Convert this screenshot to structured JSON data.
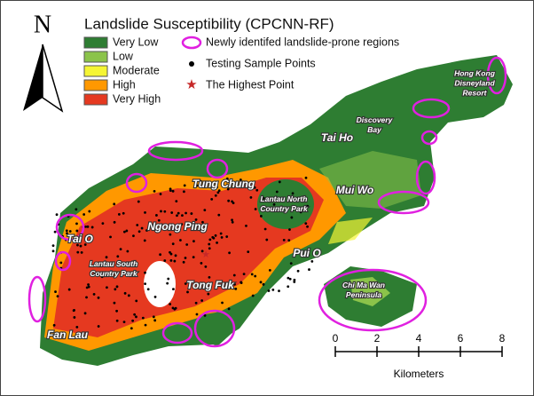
{
  "north": "N",
  "legend": {
    "title": "Landslide Susceptibility (CPCNN-RF)",
    "classes": [
      {
        "label": "Very Low",
        "color": "#2e7d32"
      },
      {
        "label": "Low",
        "color": "#8bc34a"
      },
      {
        "label": "Moderate",
        "color": "#f5f534"
      },
      {
        "label": "High",
        "color": "#ff9800"
      },
      {
        "label": "Very High",
        "color": "#e53920"
      }
    ],
    "symbols": [
      "Newly identifed landslide-prone regions",
      "Testing Sample Points",
      "The Highest Point"
    ]
  },
  "places": [
    {
      "lines": [
        "Hong Kong",
        "Disneyland",
        "Resort"
      ]
    },
    {
      "lines": [
        "Discovery",
        "Bay"
      ]
    },
    {
      "lines": [
        "Tai Ho"
      ]
    },
    {
      "lines": [
        "Tung Chung"
      ]
    },
    {
      "lines": [
        "Lantau North",
        "Country Park"
      ]
    },
    {
      "lines": [
        "Mui Wo"
      ]
    },
    {
      "lines": [
        "Ngong Ping"
      ]
    },
    {
      "lines": [
        "Tai O"
      ]
    },
    {
      "lines": [
        "Pui O"
      ]
    },
    {
      "lines": [
        "Lantau South",
        "Country Park"
      ]
    },
    {
      "lines": [
        "Tong Fuk"
      ]
    },
    {
      "lines": [
        "Chi Ma Wan",
        "Peninsula"
      ]
    },
    {
      "lines": [
        "Fan Lau"
      ]
    }
  ],
  "scale_bar": {
    "ticks": [
      0,
      2,
      4,
      6,
      8
    ],
    "unit": "Kilometers"
  }
}
